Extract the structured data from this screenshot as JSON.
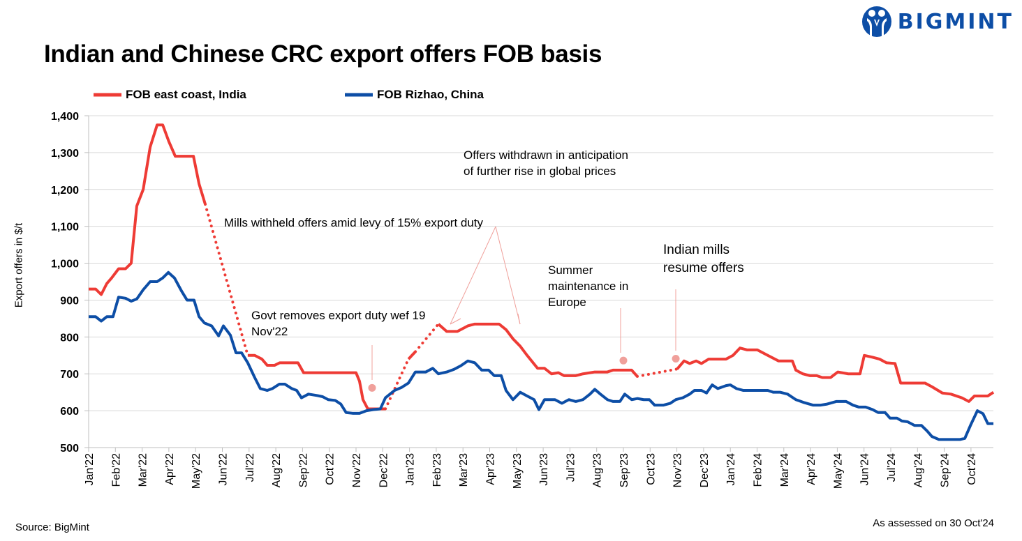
{
  "title": "Indian and Chinese CRC export offers FOB basis",
  "logo": {
    "text": "BIGMINT",
    "color": "#0d4ea6"
  },
  "source": "Source: BigMint",
  "assessed": "As assessed on 30 Oct'24",
  "annotations": {
    "mills_withheld": "Mills withheld offers  amid levy of 15% export duty",
    "govt_removes": "Govt removes export duty wef 19 Nov'22",
    "offers_withdrawn": "Offers withdrawn in anticipation of further rise in global prices",
    "summer": "Summer maintenance in Europe",
    "indian_mills": "Indian mills resume offers"
  },
  "chart_data": {
    "type": "line",
    "title": "Indian and Chinese CRC export offers FOB basis",
    "xlabel": "",
    "ylabel": "Export offers in $/t",
    "ylim": [
      500,
      1400
    ],
    "yticks": [
      500,
      600,
      700,
      800,
      900,
      1000,
      1100,
      1200,
      1300,
      1400
    ],
    "ytick_labels": [
      "500",
      "600",
      "700",
      "800",
      "900",
      "1,000",
      "1,100",
      "1,200",
      "1,300",
      "1,400"
    ],
    "x_unit": "months since Jan'22",
    "xlim": [
      0,
      33.85
    ],
    "xtick_labels": [
      "Jan'22",
      "Feb'22",
      "Mar'22",
      "Apr'22",
      "May'22",
      "Jun'22",
      "Jul'22",
      "Aug'22",
      "Sep'22",
      "Oct'22",
      "Nov'22",
      "Dec'22",
      "Jan'23",
      "Feb'23",
      "Mar'23",
      "Apr'23",
      "May'23",
      "Jun'23",
      "Jul'23",
      "Aug'23",
      "Sep'23",
      "Oct'23",
      "Nov'23",
      "Dec'23",
      "Jan'24",
      "Feb'24",
      "Mar'24",
      "Apr'24",
      "May'24",
      "Jun'24",
      "Jul'24",
      "Aug'24",
      "Sep'24",
      "Oct'24"
    ],
    "grid": true,
    "legend_position": "top-left",
    "series": [
      {
        "name": "FOB east coast, India",
        "color": "#ee3b35",
        "gaps_dotted": true,
        "segments": [
          [
            [
              0,
              930
            ],
            [
              0.26,
              930
            ],
            [
              0.47,
              915
            ],
            [
              0.68,
              945
            ],
            [
              0.86,
              960
            ],
            [
              1.12,
              985
            ],
            [
              1.38,
              985
            ],
            [
              1.59,
              1000
            ],
            [
              1.8,
              1155
            ],
            [
              2.04,
              1200
            ],
            [
              2.3,
              1315
            ],
            [
              2.56,
              1375
            ],
            [
              2.77,
              1375
            ],
            [
              3.0,
              1330
            ],
            [
              3.24,
              1290
            ],
            [
              3.92,
              1290
            ],
            [
              4.13,
              1215
            ],
            [
              4.36,
              1160
            ]
          ],
          [
            [
              5.95,
              750
            ],
            [
              6.21,
              750
            ],
            [
              6.48,
              740
            ],
            [
              6.68,
              723
            ],
            [
              6.95,
              723
            ],
            [
              7.15,
              730
            ],
            [
              7.83,
              730
            ],
            [
              8.04,
              703
            ],
            [
              10.0,
              703
            ],
            [
              10.13,
              680
            ],
            [
              10.26,
              630
            ],
            [
              10.44,
              605
            ],
            [
              11.1,
              605
            ]
          ],
          [
            [
              11.96,
              740
            ],
            [
              12.22,
              760
            ]
          ],
          [
            [
              13.08,
              835
            ],
            [
              13.39,
              815
            ],
            [
              13.79,
              815
            ],
            [
              14.18,
              830
            ],
            [
              14.44,
              835
            ],
            [
              15.35,
              835
            ],
            [
              15.61,
              820
            ],
            [
              15.87,
              795
            ],
            [
              16.14,
              775
            ],
            [
              16.4,
              750
            ],
            [
              16.79,
              715
            ],
            [
              17.05,
              715
            ],
            [
              17.31,
              700
            ],
            [
              17.57,
              703
            ],
            [
              17.78,
              695
            ],
            [
              18.22,
              695
            ],
            [
              18.49,
              700
            ],
            [
              18.93,
              705
            ],
            [
              19.4,
              705
            ],
            [
              19.61,
              710
            ],
            [
              20.31,
              710
            ],
            [
              20.52,
              693
            ]
          ],
          [
            [
              22.01,
              713
            ],
            [
              22.27,
              735
            ],
            [
              22.48,
              728
            ],
            [
              22.72,
              735
            ],
            [
              22.92,
              728
            ],
            [
              23.19,
              740
            ],
            [
              23.84,
              740
            ],
            [
              24.1,
              750
            ],
            [
              24.36,
              770
            ],
            [
              24.62,
              765
            ],
            [
              25.01,
              765
            ],
            [
              25.4,
              750
            ],
            [
              25.8,
              735
            ],
            [
              26.32,
              735
            ],
            [
              26.45,
              710
            ],
            [
              26.71,
              700
            ],
            [
              26.97,
              695
            ],
            [
              27.23,
              695
            ],
            [
              27.44,
              690
            ],
            [
              27.75,
              690
            ],
            [
              28.02,
              705
            ],
            [
              28.41,
              700
            ],
            [
              28.85,
              700
            ],
            [
              29.01,
              750
            ],
            [
              29.32,
              745
            ],
            [
              29.58,
              740
            ],
            [
              29.84,
              730
            ],
            [
              30.16,
              728
            ],
            [
              30.37,
              675
            ],
            [
              31.28,
              675
            ],
            [
              31.54,
              665
            ],
            [
              31.93,
              648
            ],
            [
              32.25,
              645
            ],
            [
              32.66,
              635
            ],
            [
              32.92,
              625
            ],
            [
              33.13,
              640
            ],
            [
              33.63,
              640
            ],
            [
              33.84,
              650
            ]
          ]
        ]
      },
      {
        "name": "FOB Rizhao, China",
        "color": "#0d4ea6",
        "segments": [
          [
            [
              0,
              855
            ],
            [
              0.26,
              855
            ],
            [
              0.47,
              843
            ],
            [
              0.68,
              855
            ],
            [
              0.91,
              855
            ],
            [
              1.12,
              908
            ],
            [
              1.38,
              905
            ],
            [
              1.59,
              897
            ],
            [
              1.8,
              903
            ],
            [
              2.04,
              928
            ],
            [
              2.3,
              950
            ],
            [
              2.56,
              950
            ],
            [
              2.77,
              960
            ],
            [
              2.98,
              975
            ],
            [
              3.21,
              960
            ],
            [
              3.47,
              925
            ],
            [
              3.68,
              900
            ],
            [
              3.94,
              900
            ],
            [
              4.13,
              855
            ],
            [
              4.33,
              838
            ],
            [
              4.6,
              830
            ],
            [
              4.86,
              803
            ],
            [
              5.04,
              830
            ],
            [
              5.3,
              805
            ],
            [
              5.51,
              757
            ],
            [
              5.72,
              757
            ],
            [
              5.95,
              730
            ],
            [
              6.21,
              690
            ],
            [
              6.42,
              660
            ],
            [
              6.68,
              655
            ],
            [
              6.87,
              660
            ],
            [
              7.13,
              672
            ],
            [
              7.34,
              672
            ],
            [
              7.6,
              660
            ],
            [
              7.78,
              655
            ],
            [
              7.96,
              635
            ],
            [
              8.22,
              645
            ],
            [
              8.56,
              641
            ],
            [
              8.75,
              638
            ],
            [
              8.96,
              630
            ],
            [
              9.22,
              628
            ],
            [
              9.43,
              618
            ],
            [
              9.63,
              595
            ],
            [
              9.87,
              593
            ],
            [
              10.13,
              593
            ],
            [
              10.39,
              600
            ],
            [
              10.65,
              603
            ],
            [
              10.91,
              605
            ],
            [
              11.1,
              635
            ],
            [
              11.44,
              655
            ],
            [
              11.7,
              663
            ],
            [
              11.96,
              675
            ],
            [
              12.22,
              705
            ],
            [
              12.61,
              705
            ],
            [
              12.87,
              715
            ],
            [
              13.08,
              700
            ],
            [
              13.39,
              705
            ],
            [
              13.66,
              712
            ],
            [
              13.92,
              722
            ],
            [
              14.18,
              735
            ],
            [
              14.44,
              730
            ],
            [
              14.7,
              710
            ],
            [
              14.96,
              710
            ],
            [
              15.17,
              695
            ],
            [
              15.43,
              695
            ],
            [
              15.61,
              655
            ],
            [
              15.87,
              630
            ],
            [
              16.14,
              650
            ],
            [
              16.4,
              640
            ],
            [
              16.66,
              630
            ],
            [
              16.84,
              603
            ],
            [
              17.05,
              630
            ],
            [
              17.44,
              630
            ],
            [
              17.7,
              620
            ],
            [
              17.96,
              630
            ],
            [
              18.22,
              625
            ],
            [
              18.49,
              630
            ],
            [
              18.75,
              645
            ],
            [
              18.93,
              658
            ],
            [
              19.14,
              645
            ],
            [
              19.4,
              630
            ],
            [
              19.61,
              625
            ],
            [
              19.87,
              625
            ],
            [
              20.05,
              645
            ],
            [
              20.31,
              630
            ],
            [
              20.52,
              633
            ],
            [
              20.76,
              630
            ],
            [
              20.97,
              630
            ],
            [
              21.17,
              615
            ],
            [
              21.49,
              615
            ],
            [
              21.75,
              620
            ],
            [
              21.96,
              630
            ],
            [
              22.22,
              635
            ],
            [
              22.48,
              645
            ],
            [
              22.66,
              655
            ],
            [
              22.92,
              655
            ],
            [
              23.11,
              648
            ],
            [
              23.32,
              670
            ],
            [
              23.53,
              660
            ],
            [
              23.84,
              668
            ],
            [
              24.0,
              670
            ],
            [
              24.23,
              660
            ],
            [
              24.49,
              655
            ],
            [
              25.4,
              655
            ],
            [
              25.61,
              650
            ],
            [
              25.87,
              650
            ],
            [
              26.14,
              645
            ],
            [
              26.45,
              630
            ],
            [
              26.76,
              622
            ],
            [
              27.1,
              615
            ],
            [
              27.36,
              615
            ],
            [
              27.62,
              618
            ],
            [
              27.96,
              625
            ],
            [
              28.33,
              625
            ],
            [
              28.59,
              615
            ],
            [
              28.8,
              610
            ],
            [
              29.06,
              610
            ],
            [
              29.32,
              603
            ],
            [
              29.53,
              595
            ],
            [
              29.79,
              595
            ],
            [
              29.97,
              580
            ],
            [
              30.23,
              580
            ],
            [
              30.42,
              572
            ],
            [
              30.63,
              570
            ],
            [
              30.89,
              560
            ],
            [
              31.15,
              560
            ],
            [
              31.36,
              545
            ],
            [
              31.54,
              530
            ],
            [
              31.8,
              522
            ],
            [
              32.59,
              522
            ],
            [
              32.77,
              525
            ],
            [
              32.98,
              560
            ],
            [
              33.24,
              600
            ],
            [
              33.45,
              592
            ],
            [
              33.63,
              565
            ],
            [
              33.84,
              565
            ]
          ]
        ]
      }
    ],
    "annotation_markers": [
      [
        10.6,
        662
      ],
      [
        20.0,
        736
      ],
      [
        21.96,
        741
      ]
    ],
    "marker_color": "#f0a09b"
  }
}
